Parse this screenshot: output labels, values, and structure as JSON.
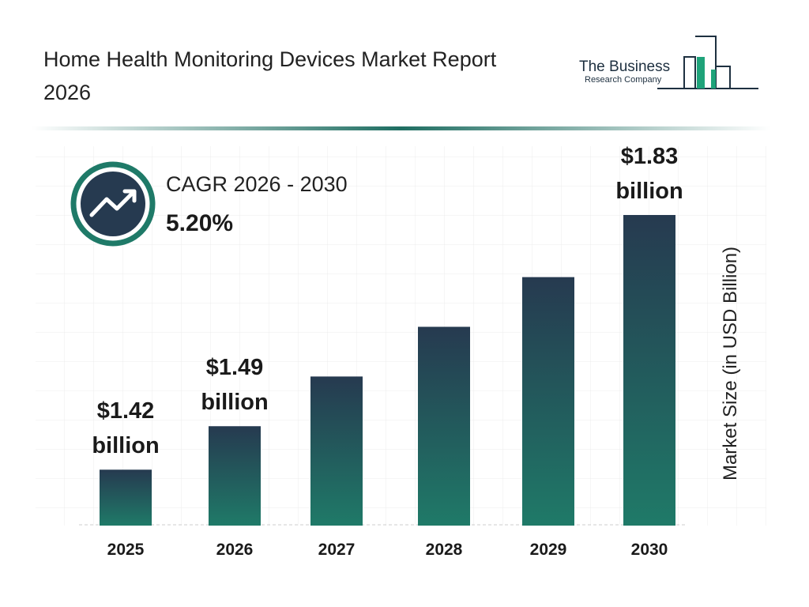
{
  "chart_data": {
    "type": "bar",
    "title": "Home Health Monitoring Devices Market Report 2026",
    "categories": [
      "2025",
      "2026",
      "2027",
      "2028",
      "2029",
      "2030"
    ],
    "values": [
      1.42,
      1.49,
      1.57,
      1.65,
      1.73,
      1.83
    ],
    "value_labels": [
      "$1.42 billion",
      "$1.49 billion",
      null,
      null,
      null,
      "$1.83 billion"
    ],
    "color_top": "#263a50",
    "color_bottom": "#1f7a68",
    "ylim": [
      1.33,
      1.9
    ],
    "y_axis_label": "Market Size (in USD Billion)",
    "cagr_label": "CAGR 2026 - 2030",
    "cagr_value": "5.20%"
  },
  "logo": {
    "line1": "The Business",
    "line2": "Research Company"
  }
}
